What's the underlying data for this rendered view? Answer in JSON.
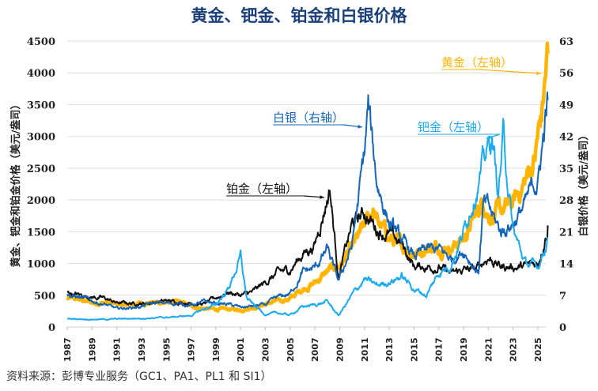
{
  "chart_data": {
    "type": "line",
    "title": "黄金、钯金、铂金和白银价格",
    "ylabel_left": "黄金、钯金和铂金价格（美元/盎司）",
    "ylabel_right": "白银价格（美元/盎司）",
    "source": "资料来源：彭博专业服务（GC1、PA1、PL1 和 SI1）",
    "xlim": [
      1987,
      2025.8
    ],
    "ylim_left": [
      0,
      4500
    ],
    "ylim_right": [
      0,
      63
    ],
    "yticks_left": [
      "0",
      "500",
      "1000",
      "1500",
      "2000",
      "2500",
      "3000",
      "3500",
      "4000",
      "4500"
    ],
    "yticks_right": [
      "0",
      "7",
      "14",
      "21",
      "28",
      "35",
      "42",
      "49",
      "56",
      "63"
    ],
    "xticks": [
      "1987",
      "1989",
      "1991",
      "1993",
      "1995",
      "1997",
      "1999",
      "2001",
      "2003",
      "2005",
      "2007",
      "2009",
      "2011",
      "2013",
      "2015",
      "2017",
      "2019",
      "2021",
      "2023",
      "2025"
    ],
    "grid": true,
    "series": [
      {
        "name": "黄金（左轴）",
        "axis": "left",
        "color": "#FFB400",
        "x": [
          1987,
          1988,
          1989,
          1990,
          1991,
          1992,
          1993,
          1994,
          1995,
          1996,
          1997,
          1998,
          1999,
          2000,
          2001,
          2002,
          2003,
          2004,
          2005,
          2006,
          2007,
          2008,
          2009,
          2010,
          2011,
          2011.7,
          2012,
          2013,
          2014,
          2015,
          2016,
          2017,
          2018,
          2019,
          2020,
          2020.6,
          2021,
          2022,
          2023,
          2024,
          2024.8,
          2025,
          2025.3,
          2025.8
        ],
        "y": [
          450,
          430,
          380,
          380,
          360,
          340,
          380,
          385,
          385,
          385,
          330,
          290,
          280,
          280,
          270,
          310,
          360,
          410,
          445,
          600,
          700,
          870,
          970,
          1220,
          1570,
          1850,
          1670,
          1400,
          1270,
          1160,
          1250,
          1260,
          1270,
          1390,
          1770,
          2000,
          1800,
          1800,
          1940,
          2300,
          2700,
          3000,
          3300,
          4300
        ]
      },
      {
        "name": "铂金（左轴）",
        "axis": "left",
        "color": "#111111",
        "x": [
          1987,
          1988,
          1990,
          1991,
          1993,
          1995,
          1997,
          1998,
          2000,
          2001,
          2002,
          2003,
          2004,
          2005,
          2006,
          2007,
          2008.2,
          2008.9,
          2010,
          2011,
          2012,
          2013,
          2014,
          2015,
          2016,
          2017,
          2018,
          2019,
          2020,
          2021,
          2022,
          2023,
          2024,
          2025,
          2025.8
        ],
        "y": [
          550,
          500,
          450,
          380,
          370,
          410,
          380,
          360,
          550,
          500,
          550,
          700,
          850,
          900,
          1150,
          1300,
          2200,
          800,
          1600,
          1800,
          1550,
          1450,
          1300,
          950,
          950,
          950,
          830,
          900,
          900,
          1100,
          950,
          950,
          950,
          1000,
          1600
        ]
      },
      {
        "name": "白银（右轴）",
        "axis": "right",
        "color": "#1565B8",
        "x": [
          1987,
          1988,
          1990,
          1991,
          1993,
          1994,
          1996,
          1997,
          1998,
          2000,
          2001,
          2002,
          2003,
          2004,
          2005,
          2006,
          2007,
          2008,
          2008.9,
          2010,
          2011,
          2011.3,
          2012,
          2013,
          2014,
          2015,
          2016,
          2017,
          2018,
          2019,
          2020.2,
          2020.6,
          2021,
          2022,
          2023,
          2024,
          2024.8,
          2025,
          2025.8
        ],
        "y": [
          7,
          6.5,
          5,
          4,
          4.5,
          5.3,
          5.2,
          4.8,
          5.5,
          5,
          4.3,
          4.6,
          4.9,
          6.5,
          7.3,
          12,
          13,
          17,
          10,
          18,
          38,
          48,
          32,
          23,
          19,
          15.5,
          17,
          17,
          15,
          17,
          12,
          27,
          26,
          21,
          23,
          27,
          32,
          32,
          50
        ]
      },
      {
        "name": "钯金（左轴）",
        "axis": "left",
        "color": "#1EAAEE",
        "x": [
          1987,
          1990,
          1995,
          1997,
          1998,
          1999,
          2000,
          2001,
          2001.5,
          2002,
          2003,
          2004,
          2005,
          2006,
          2007,
          2008,
          2008.9,
          2010,
          2011,
          2012,
          2013,
          2014,
          2015,
          2016,
          2017,
          2018,
          2019,
          2020,
          2021.3,
          2021.8,
          2022.2,
          2023,
          2024,
          2025,
          2025.8
        ],
        "y": [
          130,
          120,
          150,
          180,
          280,
          350,
          600,
          1100,
          450,
          350,
          200,
          220,
          190,
          320,
          350,
          400,
          180,
          500,
          750,
          650,
          720,
          800,
          600,
          500,
          850,
          1000,
          1500,
          2200,
          3000,
          2100,
          3000,
          1500,
          1000,
          950,
          1400
        ]
      }
    ],
    "annotations": [
      {
        "text": "黄金（左轴）",
        "color": "#FFB400"
      },
      {
        "text": "白银（右轴）",
        "color": "#1565B8"
      },
      {
        "text": "钯金（左轴）",
        "color": "#1EAAEE"
      },
      {
        "text": "铂金（左轴）",
        "color": "#111111"
      }
    ]
  }
}
